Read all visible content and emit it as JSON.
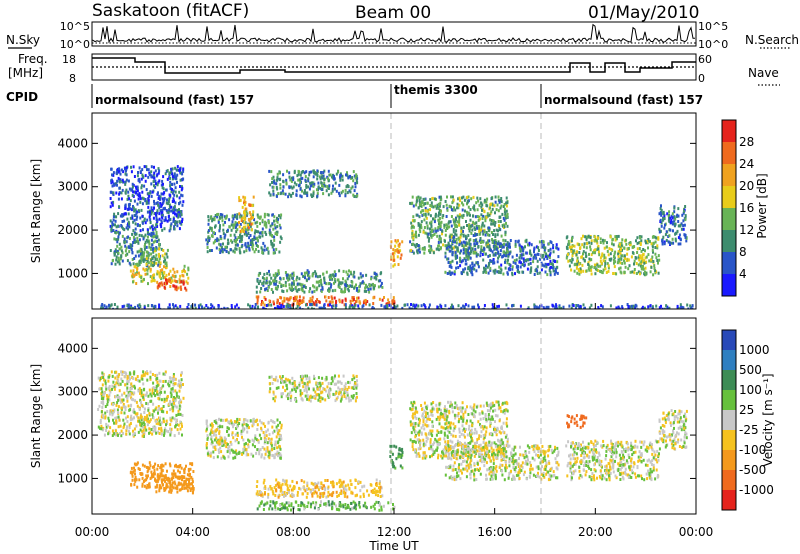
{
  "header": {
    "station": "Saskatoon (fitACF)",
    "beam": "Beam 00",
    "date": "01/May/2010"
  },
  "side_labels": {
    "nsky": "N.Sky",
    "freq_line1": "Freq.",
    "freq_line2": "[MHz]",
    "cpid": "CPID",
    "nsearch": "N.Search",
    "nave": "Nave"
  },
  "top_axes": {
    "nsky_ticks": [
      "10^5",
      "10^0"
    ],
    "nsearch_ticks": [
      "10^5",
      "10^0"
    ],
    "freq_ticks": [
      "18",
      "8"
    ],
    "nave_ticks": [
      "60",
      "0"
    ]
  },
  "cpid_segments": [
    {
      "label": "normalsound (fast) 157"
    },
    {
      "label": "themis 3300"
    },
    {
      "label": "normalsound (fast) 157"
    }
  ],
  "x_axis": {
    "label": "Time UT",
    "ticks": [
      "00:00",
      "04:00",
      "08:00",
      "12:00",
      "16:00",
      "20:00",
      "00:00"
    ],
    "tick_hours": [
      0,
      4,
      8,
      12,
      16,
      20,
      24
    ]
  },
  "y_axis": {
    "label": "Slant Range [km]",
    "ticks": [
      "1000",
      "2000",
      "3000",
      "4000"
    ],
    "tick_values": [
      1000,
      2000,
      3000,
      4000
    ]
  },
  "colorbars": {
    "power": {
      "title": "Power [dB]",
      "labels": [
        "4",
        "8",
        "12",
        "16",
        "20",
        "24",
        "28"
      ],
      "colors": [
        "#1a1aff",
        "#2955c8",
        "#3d8c6e",
        "#68b356",
        "#e8cc1a",
        "#f0a21f",
        "#ef6a1e",
        "#e5231c"
      ]
    },
    "velocity": {
      "title": "Velocity [m s⁻¹]",
      "labels": [
        "1000",
        "500",
        "100",
        "25",
        "-25",
        "-100",
        "-500",
        "-1000"
      ],
      "colors": [
        "#2849b8",
        "#2f7fc0",
        "#3d8c55",
        "#66c03c",
        "#c8c8c8",
        "#f5c21f",
        "#f4991c",
        "#ef6a1e",
        "#e5231c"
      ]
    }
  },
  "chart_data": [
    {
      "type": "heatmap",
      "panel": "power",
      "xlabel": "Time UT",
      "ylabel": "Slant Range [km]",
      "xlim": [
        0,
        24
      ],
      "ylim": [
        180,
        4700
      ],
      "colorbar_label": "Power [dB]",
      "regions": [
        {
          "t": [
            0.7,
            3.6
          ],
          "r": [
            2000,
            3500
          ],
          "power": 6
        },
        {
          "t": [
            0.7,
            2.7
          ],
          "r": [
            1200,
            2000
          ],
          "power": 10
        },
        {
          "t": [
            1.5,
            3.8
          ],
          "r": [
            800,
            1200
          ],
          "power": 18
        },
        {
          "t": [
            2.5,
            3.8
          ],
          "r": [
            650,
            900
          ],
          "power": 27
        },
        {
          "t": [
            1.8,
            3.0
          ],
          "r": [
            1200,
            1600
          ],
          "power": 14
        },
        {
          "t": [
            4.5,
            7.5
          ],
          "r": [
            1500,
            2400
          ],
          "power": 10
        },
        {
          "t": [
            5.8,
            6.4
          ],
          "r": [
            2000,
            2800
          ],
          "power": 20
        },
        {
          "t": [
            7.0,
            10.5
          ],
          "r": [
            2800,
            3400
          ],
          "power": 9
        },
        {
          "t": [
            6.5,
            12.0
          ],
          "r": [
            300,
            500
          ],
          "power": 26
        },
        {
          "t": [
            6.5,
            11.5
          ],
          "r": [
            600,
            1100
          ],
          "power": 11
        },
        {
          "t": [
            11.8,
            12.3
          ],
          "r": [
            1200,
            1800
          ],
          "power": 22
        },
        {
          "t": [
            12.6,
            16.5
          ],
          "r": [
            1500,
            2800
          ],
          "power": 12
        },
        {
          "t": [
            14.0,
            18.5
          ],
          "r": [
            1000,
            1800
          ],
          "power": 8
        },
        {
          "t": [
            18.8,
            22.5
          ],
          "r": [
            1000,
            1900
          ],
          "power": 14
        },
        {
          "t": [
            22.5,
            23.6
          ],
          "r": [
            1700,
            2600
          ],
          "power": 8
        },
        {
          "t": [
            0.3,
            23.9
          ],
          "r": [
            180,
            320
          ],
          "power": 6
        }
      ]
    },
    {
      "type": "heatmap",
      "panel": "velocity",
      "xlabel": "Time UT",
      "ylabel": "Slant Range [km]",
      "xlim": [
        0,
        24
      ],
      "ylim": [
        180,
        4700
      ],
      "colorbar_label": "Velocity [m s⁻¹]",
      "regions": [
        {
          "t": [
            0.2,
            3.6
          ],
          "r": [
            2000,
            3500
          ],
          "velocity": 0
        },
        {
          "t": [
            1.5,
            4.0
          ],
          "r": [
            800,
            1400
          ],
          "velocity": -180
        },
        {
          "t": [
            2.5,
            4.0
          ],
          "r": [
            700,
            1100
          ],
          "velocity": -300
        },
        {
          "t": [
            4.5,
            7.5
          ],
          "r": [
            1500,
            2400
          ],
          "velocity": 0
        },
        {
          "t": [
            7.0,
            10.5
          ],
          "r": [
            2800,
            3400
          ],
          "velocity": 0
        },
        {
          "t": [
            6.5,
            12.0
          ],
          "r": [
            300,
            500
          ],
          "velocity": 80
        },
        {
          "t": [
            6.5,
            11.5
          ],
          "r": [
            600,
            1000
          ],
          "velocity": -60
        },
        {
          "t": [
            11.8,
            12.3
          ],
          "r": [
            1200,
            1800
          ],
          "velocity": 150
        },
        {
          "t": [
            12.6,
            16.5
          ],
          "r": [
            1500,
            2800
          ],
          "velocity": 0
        },
        {
          "t": [
            14.0,
            18.5
          ],
          "r": [
            1000,
            1800
          ],
          "velocity": 0
        },
        {
          "t": [
            18.8,
            19.6
          ],
          "r": [
            2200,
            2500
          ],
          "velocity": -600
        },
        {
          "t": [
            18.8,
            22.5
          ],
          "r": [
            1000,
            1900
          ],
          "velocity": 0
        },
        {
          "t": [
            22.5,
            23.6
          ],
          "r": [
            1700,
            2600
          ],
          "velocity": 0
        }
      ]
    }
  ]
}
